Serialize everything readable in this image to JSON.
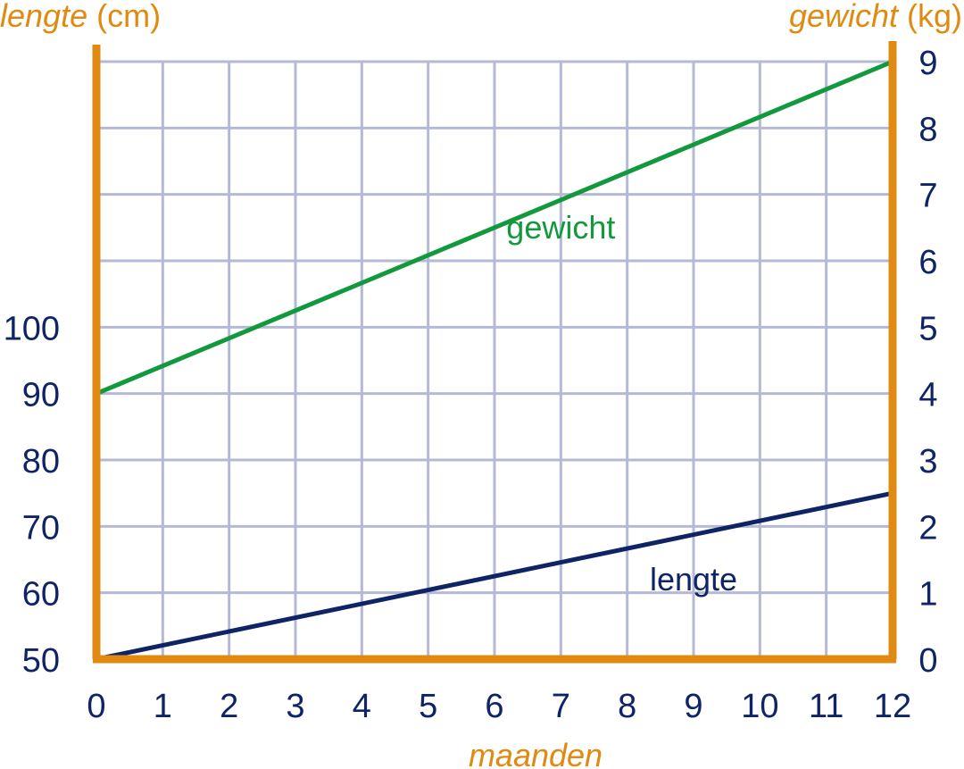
{
  "colors": {
    "axis": "#E08A12",
    "grid": "#B4B9D6",
    "tick_text": "#0F2466",
    "gewicht": "#12993D",
    "lengte": "#0F2466"
  },
  "chart_data": {
    "type": "line",
    "x_title": "maanden",
    "left_axis": {
      "title_italic": "lengte",
      "title_unit": "(cm)",
      "range": [
        50,
        140
      ],
      "ticks": [
        "50",
        "60",
        "70",
        "80",
        "90",
        "100"
      ]
    },
    "right_axis": {
      "title_italic": "gewicht",
      "title_unit": "(kg)",
      "range": [
        0,
        9
      ],
      "ticks": [
        "0",
        "1",
        "2",
        "3",
        "4",
        "5",
        "6",
        "7",
        "8",
        "9"
      ]
    },
    "x_axis": {
      "range": [
        0,
        12
      ],
      "ticks": [
        "0",
        "1",
        "2",
        "3",
        "4",
        "5",
        "6",
        "7",
        "8",
        "9",
        "10",
        "11",
        "12"
      ]
    },
    "grid": true,
    "series": [
      {
        "name": "gewicht",
        "axis": "right",
        "x": [
          0,
          12
        ],
        "y": [
          4,
          9
        ],
        "label_at": [
          7,
          6.5
        ]
      },
      {
        "name": "lengte",
        "axis": "left",
        "x": [
          0,
          12
        ],
        "y": [
          50,
          75
        ],
        "label_at": [
          9,
          62
        ]
      }
    ]
  }
}
